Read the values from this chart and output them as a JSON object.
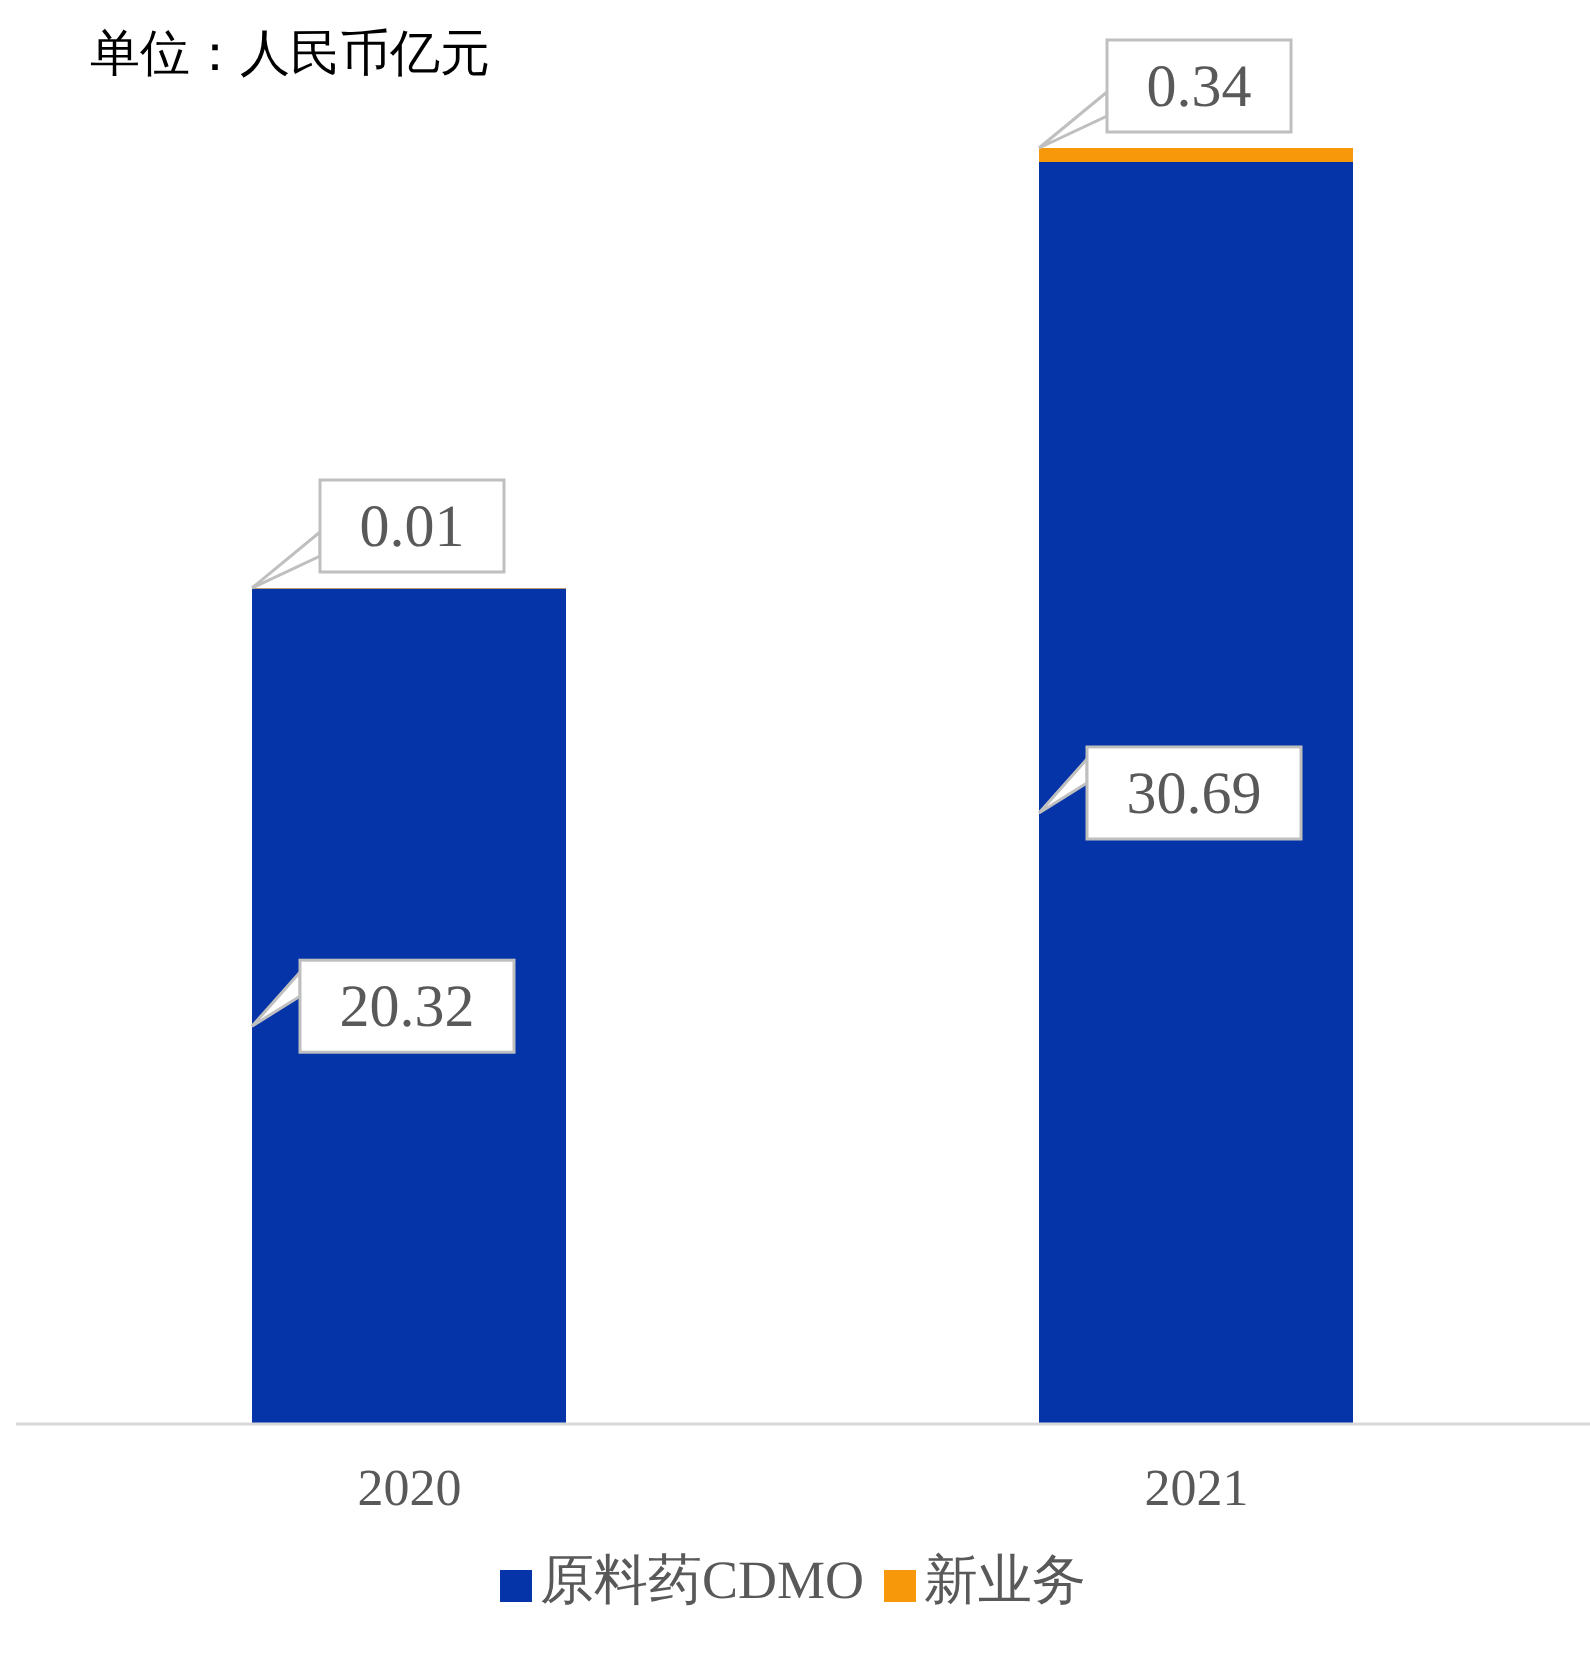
{
  "chart_data": {
    "type": "bar",
    "stacked": true,
    "data_labels": true,
    "legend": "bottom",
    "annotations": [
      "单位：人民币亿元"
    ],
    "categories": [
      "2020",
      "2021"
    ],
    "series": [
      {
        "name": "原料药CDMO",
        "color": "#0533a8",
        "values": [
          20.32,
          30.69
        ]
      },
      {
        "name": "新业务",
        "color": "#f7980a",
        "values": [
          0.01,
          0.34
        ]
      }
    ]
  }
}
